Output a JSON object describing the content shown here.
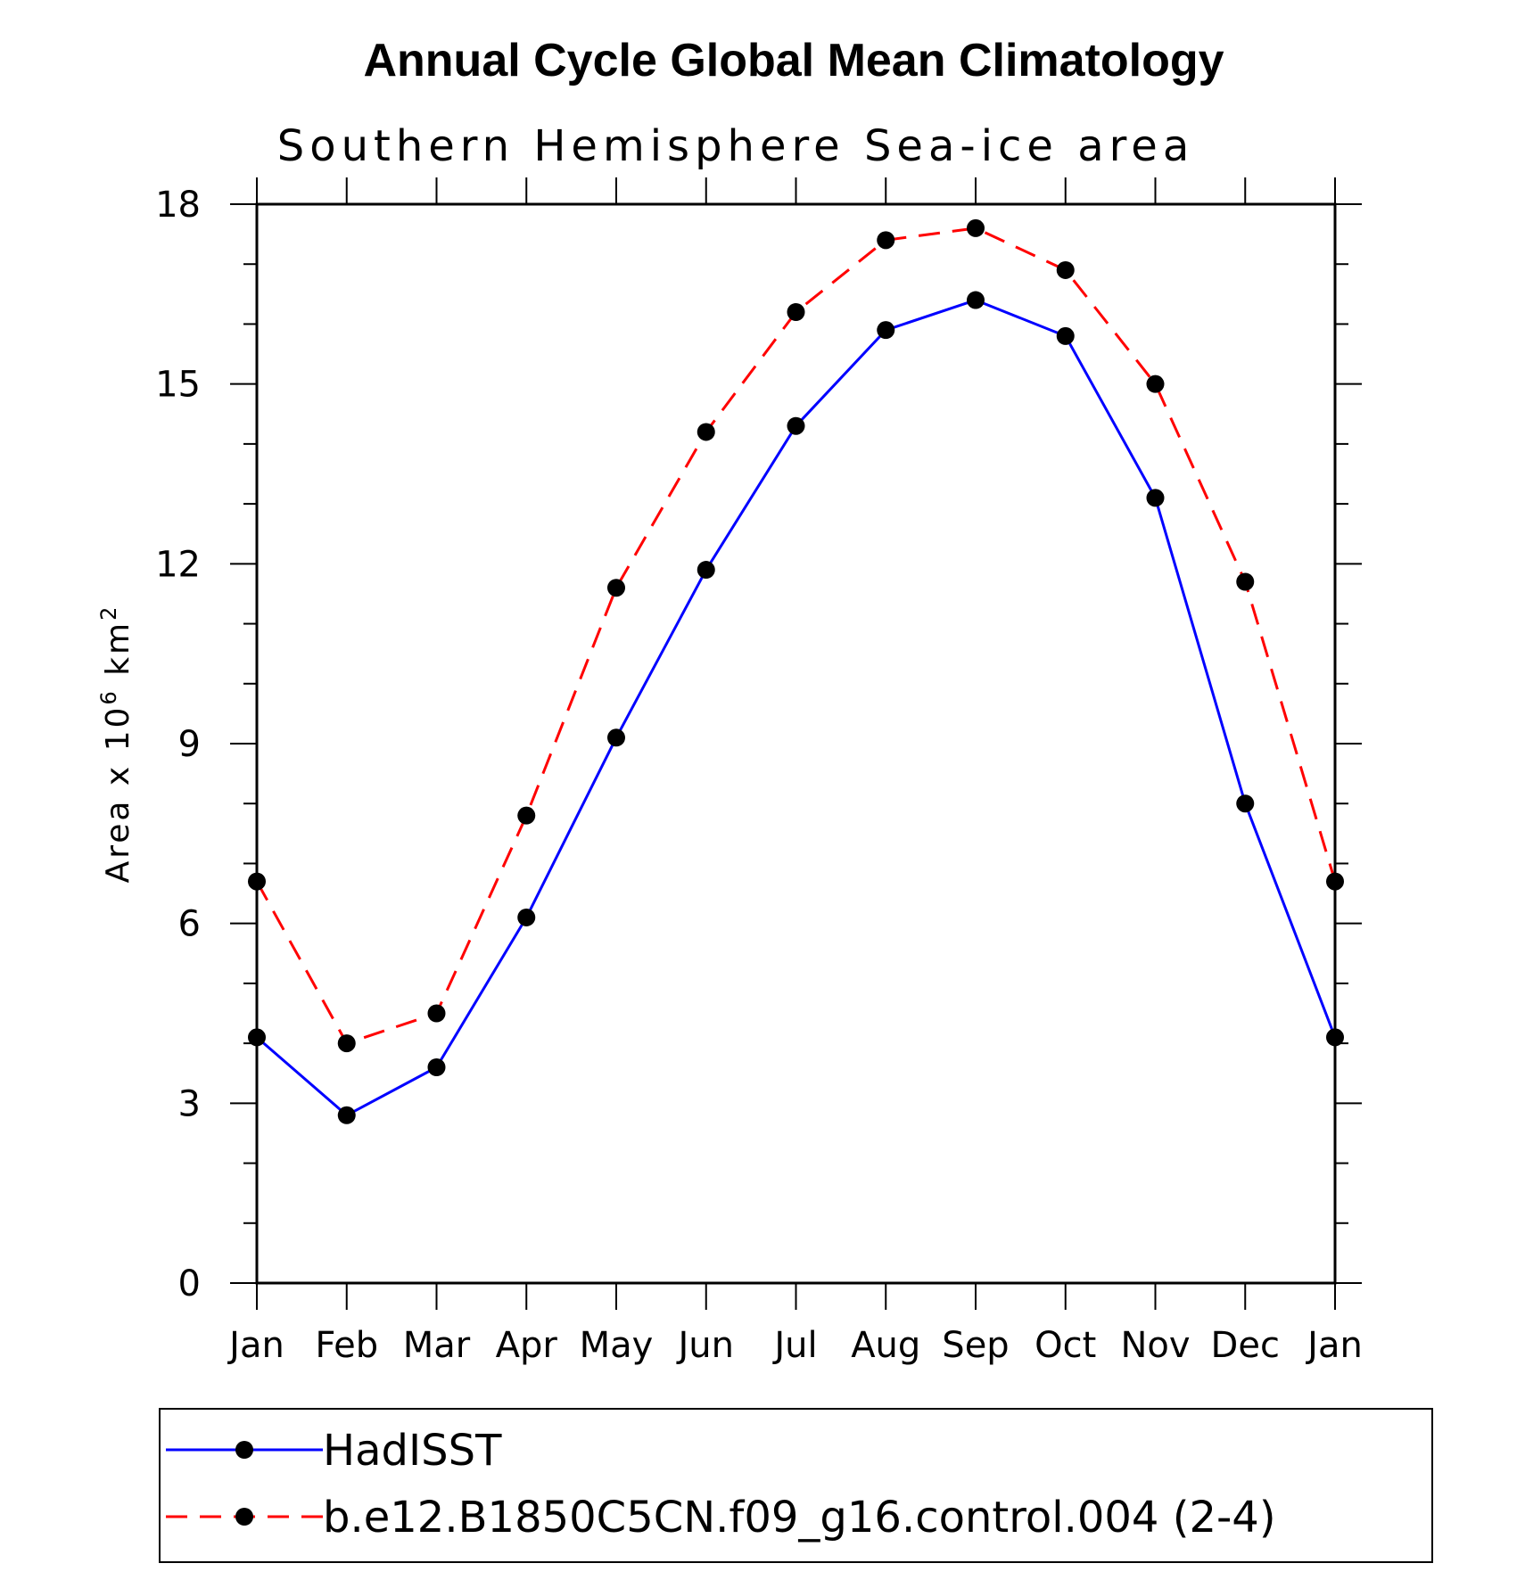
{
  "chart_data": {
    "type": "line",
    "title": "Annual Cycle Global Mean Climatology",
    "subtitle": "Southern Hemisphere Sea-ice area",
    "ylabel": {
      "prefix": "Area x 10",
      "exp1": "6",
      "unit": " km",
      "exp2": "2"
    },
    "ylim": [
      0,
      18
    ],
    "yticks": [
      0,
      3,
      6,
      9,
      12,
      15,
      18
    ],
    "categories": [
      "Jan",
      "Feb",
      "Mar",
      "Apr",
      "May",
      "Jun",
      "Jul",
      "Aug",
      "Sep",
      "Oct",
      "Nov",
      "Dec",
      "Jan"
    ],
    "series": [
      {
        "name": "HadISST",
        "color": "#0000ff",
        "dash": "solid",
        "values": [
          4.1,
          2.8,
          3.6,
          6.1,
          9.1,
          11.9,
          14.3,
          15.9,
          16.4,
          15.8,
          13.1,
          8.0,
          4.1
        ]
      },
      {
        "name": "b.e12.B1850C5CN.f09_g16.control.004 (2-4)",
        "color": "#ff0000",
        "dash": "dashed",
        "values": [
          6.7,
          4.0,
          4.5,
          7.8,
          11.6,
          14.2,
          16.2,
          17.4,
          17.6,
          16.9,
          15.0,
          11.7,
          6.7
        ]
      }
    ],
    "legend_position": "bottom"
  }
}
